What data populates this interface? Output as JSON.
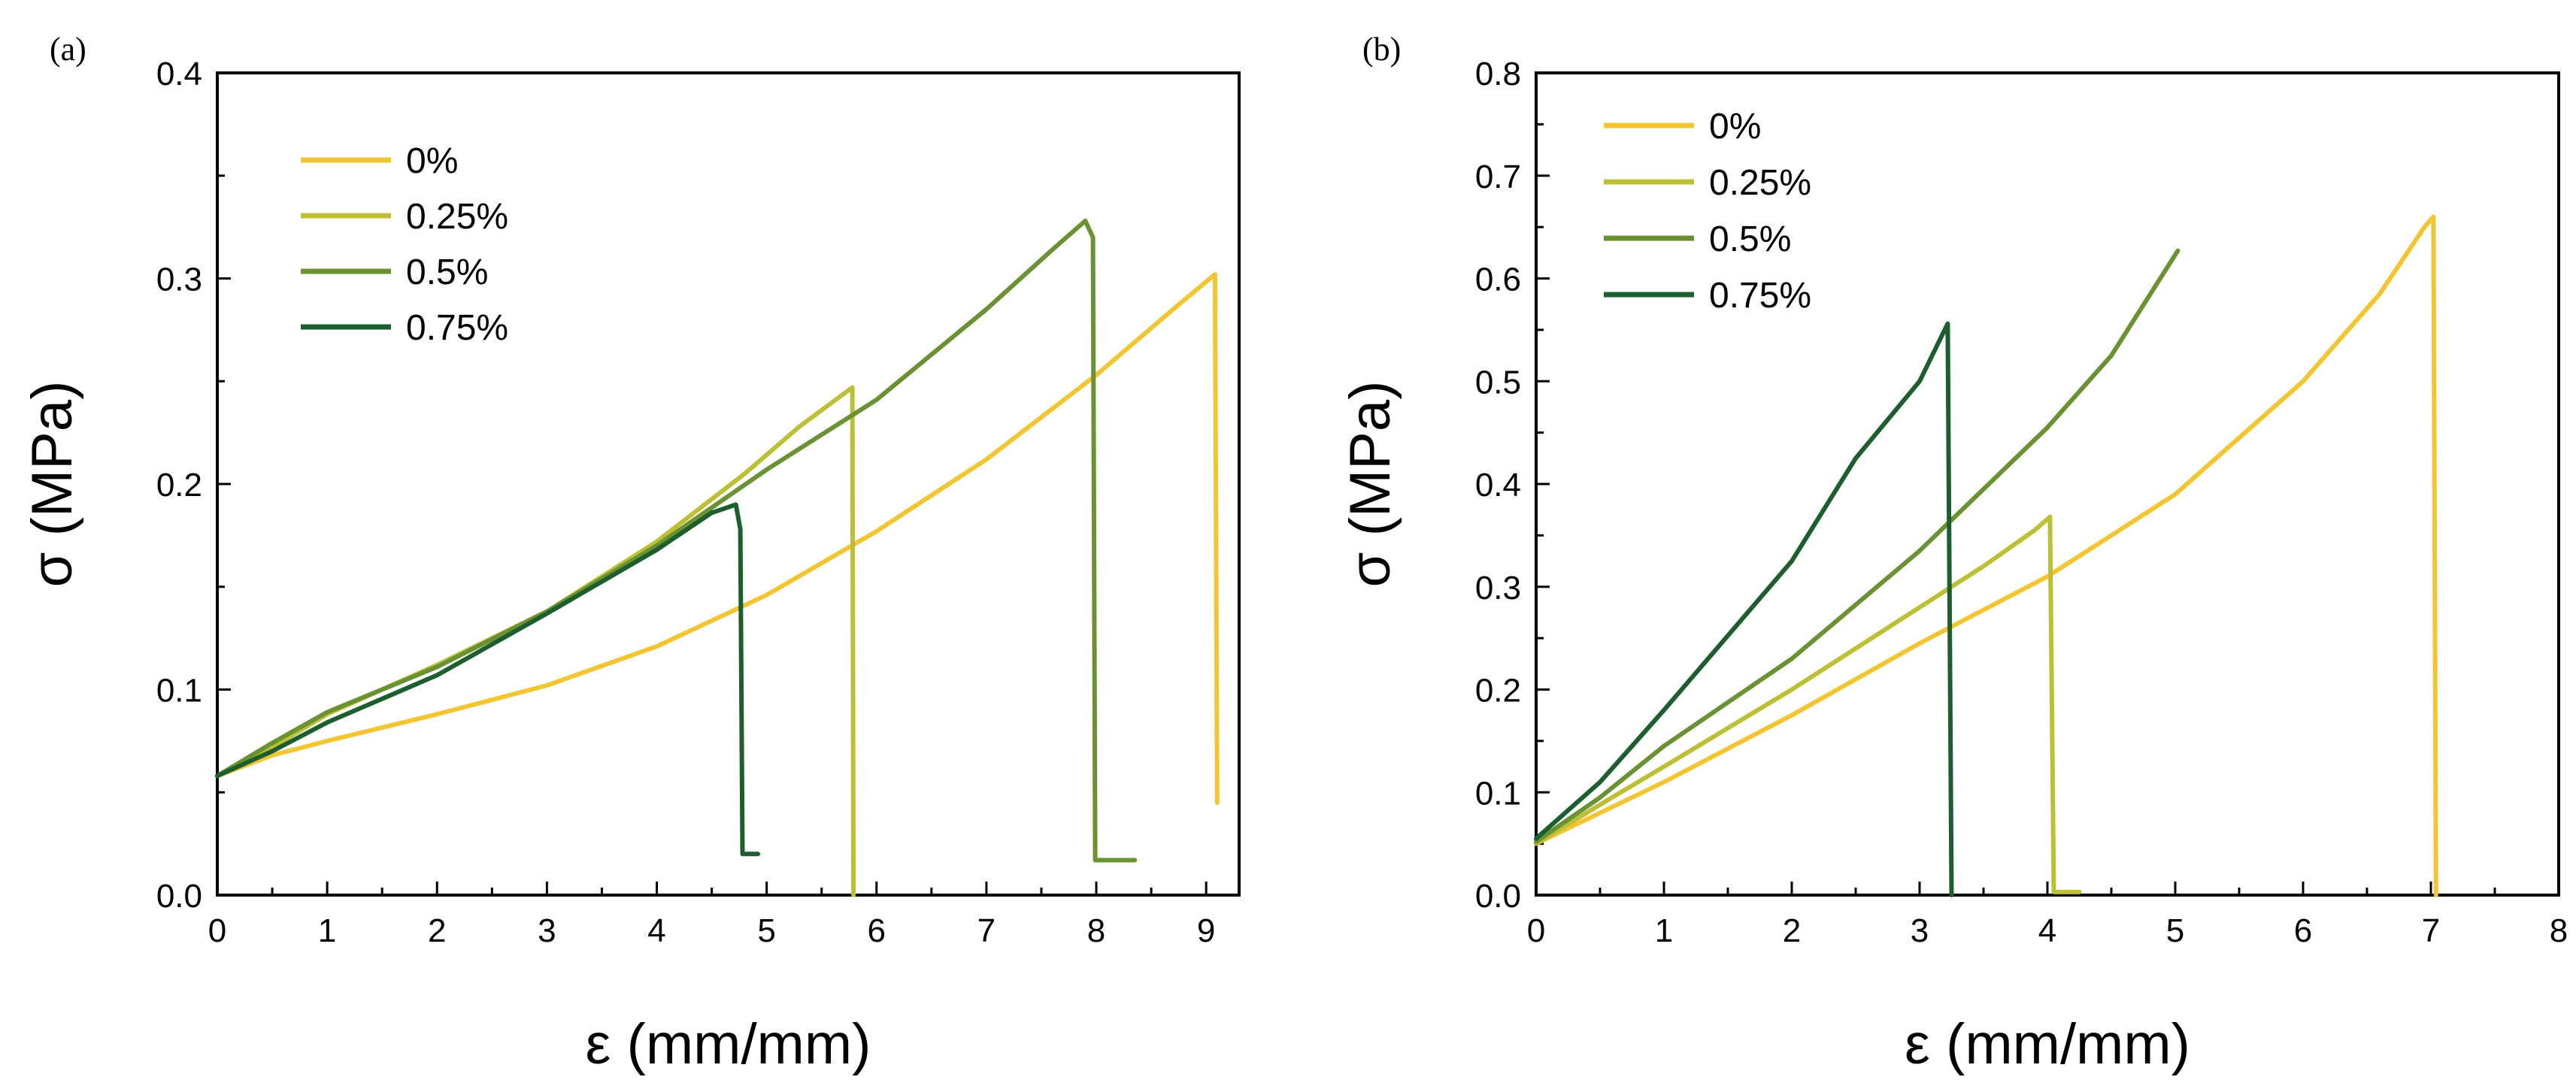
{
  "chart_data": [
    {
      "type": "line",
      "panel_label": "(a)",
      "xlabel": "ε (mm/mm)",
      "ylabel": "σ (MPa)",
      "xlim": [
        0,
        9.3
      ],
      "ylim": [
        0,
        0.4
      ],
      "xticks": [
        0,
        1,
        2,
        3,
        4,
        5,
        6,
        7,
        8,
        9
      ],
      "yticks": [
        0.0,
        0.1,
        0.2,
        0.3,
        0.4
      ],
      "ytick_labels": [
        "0.0",
        "0.1",
        "0.2",
        "0.3",
        "0.4"
      ],
      "legend_position": "top-left",
      "series": [
        {
          "name": "0%",
          "color": "#F2C531",
          "points": [
            [
              0,
              0.058
            ],
            [
              0.5,
              0.068
            ],
            [
              1,
              0.075
            ],
            [
              2,
              0.088
            ],
            [
              3,
              0.102
            ],
            [
              4,
              0.121
            ],
            [
              5,
              0.146
            ],
            [
              6,
              0.177
            ],
            [
              7,
              0.212
            ],
            [
              8,
              0.253
            ],
            [
              8.7,
              0.285
            ],
            [
              9.08,
              0.302
            ],
            [
              9.1,
              0.045
            ]
          ]
        },
        {
          "name": "0.25%",
          "color": "#BDC034",
          "points": [
            [
              0,
              0.058
            ],
            [
              0.5,
              0.072
            ],
            [
              1,
              0.088
            ],
            [
              2,
              0.112
            ],
            [
              3,
              0.138
            ],
            [
              4,
              0.172
            ],
            [
              4.8,
              0.205
            ],
            [
              5.3,
              0.228
            ],
            [
              5.78,
              0.247
            ],
            [
              5.79,
              0.0
            ]
          ]
        },
        {
          "name": "0.5%",
          "color": "#6B9232",
          "points": [
            [
              0,
              0.058
            ],
            [
              0.5,
              0.074
            ],
            [
              1,
              0.089
            ],
            [
              2,
              0.111
            ],
            [
              3,
              0.138
            ],
            [
              4,
              0.17
            ],
            [
              5,
              0.207
            ],
            [
              6,
              0.241
            ],
            [
              7,
              0.285
            ],
            [
              7.6,
              0.314
            ],
            [
              7.9,
              0.328
            ],
            [
              7.97,
              0.32
            ],
            [
              7.99,
              0.017
            ],
            [
              8.35,
              0.017
            ]
          ]
        },
        {
          "name": "0.75%",
          "color": "#1C5E2E",
          "points": [
            [
              0,
              0.058
            ],
            [
              0.5,
              0.07
            ],
            [
              1,
              0.084
            ],
            [
              2,
              0.107
            ],
            [
              3,
              0.137
            ],
            [
              4,
              0.168
            ],
            [
              4.5,
              0.186
            ],
            [
              4.72,
              0.19
            ],
            [
              4.76,
              0.178
            ],
            [
              4.78,
              0.02
            ],
            [
              4.92,
              0.02
            ]
          ]
        }
      ]
    },
    {
      "type": "line",
      "panel_label": "(b)",
      "xlabel": "ε (mm/mm)",
      "ylabel": "σ (MPa)",
      "xlim": [
        0,
        8
      ],
      "ylim": [
        0,
        0.8
      ],
      "xticks": [
        0,
        1,
        2,
        3,
        4,
        5,
        6,
        7,
        8
      ],
      "yticks": [
        0.0,
        0.1,
        0.2,
        0.3,
        0.4,
        0.5,
        0.6,
        0.7,
        0.8
      ],
      "ytick_labels": [
        "0.0",
        "0.1",
        "0.2",
        "0.3",
        "0.4",
        "0.5",
        "0.6",
        "0.7",
        "0.8"
      ],
      "legend_position": "top-left",
      "series": [
        {
          "name": "0%",
          "color": "#F2C531",
          "points": [
            [
              0,
              0.05
            ],
            [
              0.5,
              0.08
            ],
            [
              1,
              0.11
            ],
            [
              2,
              0.175
            ],
            [
              3,
              0.245
            ],
            [
              4,
              0.31
            ],
            [
              5,
              0.39
            ],
            [
              6,
              0.5
            ],
            [
              6.6,
              0.585
            ],
            [
              6.95,
              0.65
            ],
            [
              7.02,
              0.66
            ],
            [
              7.04,
              0.0
            ]
          ]
        },
        {
          "name": "0.25%",
          "color": "#BDC034",
          "points": [
            [
              0,
              0.05
            ],
            [
              0.5,
              0.088
            ],
            [
              1,
              0.125
            ],
            [
              2,
              0.2
            ],
            [
              3,
              0.28
            ],
            [
              3.5,
              0.32
            ],
            [
              3.9,
              0.355
            ],
            [
              4.02,
              0.368
            ],
            [
              4.05,
              0.003
            ],
            [
              4.25,
              0.003
            ]
          ]
        },
        {
          "name": "0.5%",
          "color": "#6B9232",
          "points": [
            [
              0,
              0.052
            ],
            [
              0.5,
              0.095
            ],
            [
              1,
              0.145
            ],
            [
              2,
              0.23
            ],
            [
              3,
              0.335
            ],
            [
              4,
              0.455
            ],
            [
              4.5,
              0.525
            ],
            [
              5.02,
              0.627
            ]
          ]
        },
        {
          "name": "0.75%",
          "color": "#1C5E2E",
          "points": [
            [
              0,
              0.055
            ],
            [
              0.5,
              0.11
            ],
            [
              1,
              0.18
            ],
            [
              2,
              0.325
            ],
            [
              2.5,
              0.425
            ],
            [
              3,
              0.5
            ],
            [
              3.22,
              0.556
            ],
            [
              3.25,
              0.0
            ]
          ]
        }
      ]
    }
  ]
}
